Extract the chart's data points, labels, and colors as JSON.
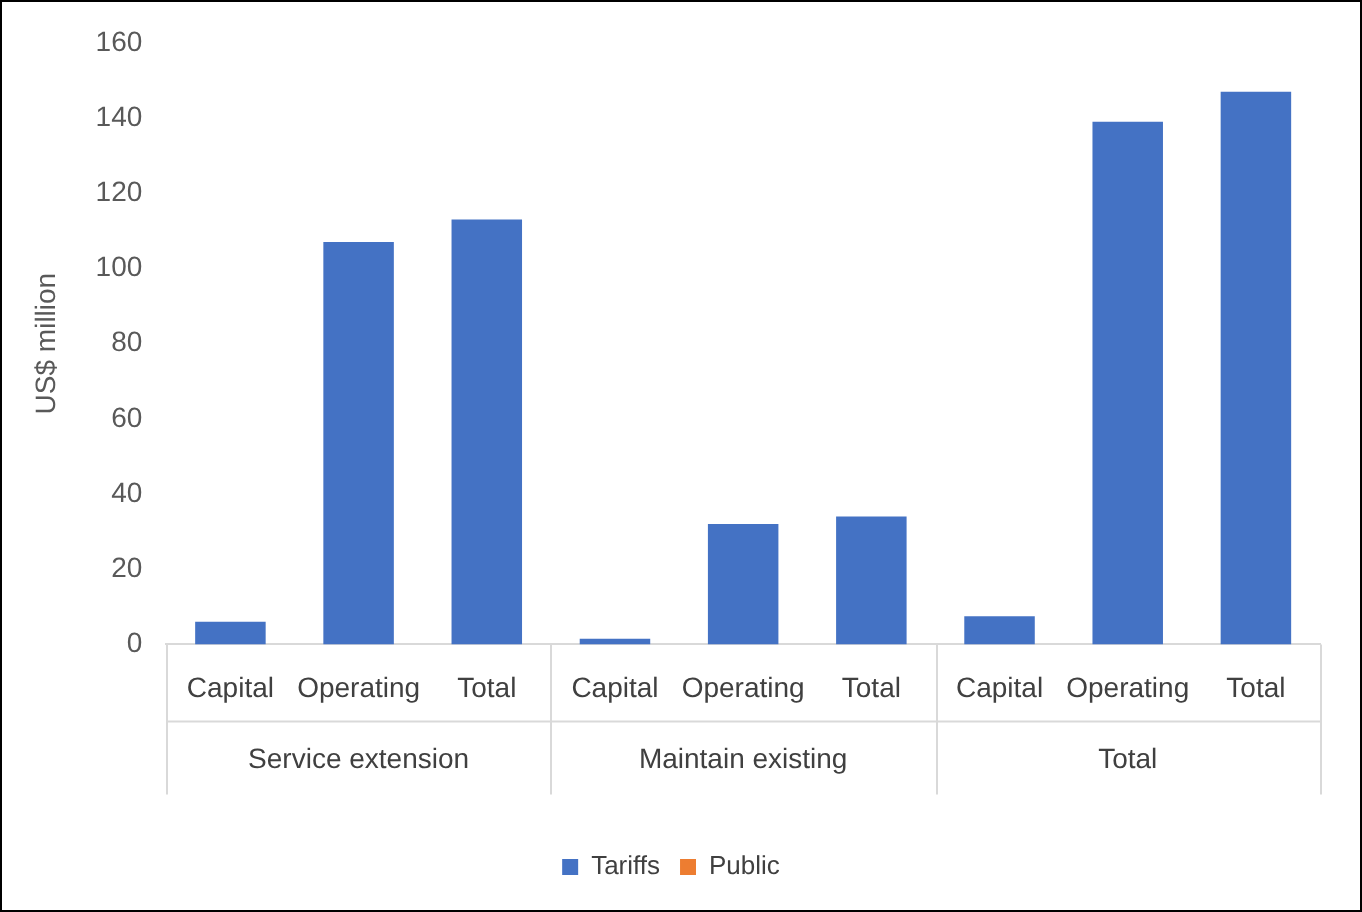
{
  "chart_data": {
    "type": "bar",
    "ylabel": "US$ million",
    "stacked": true,
    "categories": [
      "Capital",
      "Operating",
      "Total",
      "Capital",
      "Operating",
      "Total",
      "Capital",
      "Operating",
      "Total"
    ],
    "annotations": [
      "Service extension",
      "Maintain existing",
      "Total"
    ],
    "series": [
      {
        "name": "Tariffs",
        "color": "#4472c4",
        "values": [
          6,
          107,
          113,
          1.5,
          32,
          34,
          7.5,
          139,
          147
        ]
      },
      {
        "name": "Public",
        "color": "#ed7d31",
        "values": [
          0,
          0,
          0,
          0,
          0,
          0,
          0,
          0,
          0
        ]
      }
    ],
    "ylim": [
      0,
      160
    ],
    "yticks": [
      0,
      20,
      40,
      60,
      80,
      100,
      120,
      140,
      160
    ],
    "grid": false,
    "legend": "bottom"
  }
}
